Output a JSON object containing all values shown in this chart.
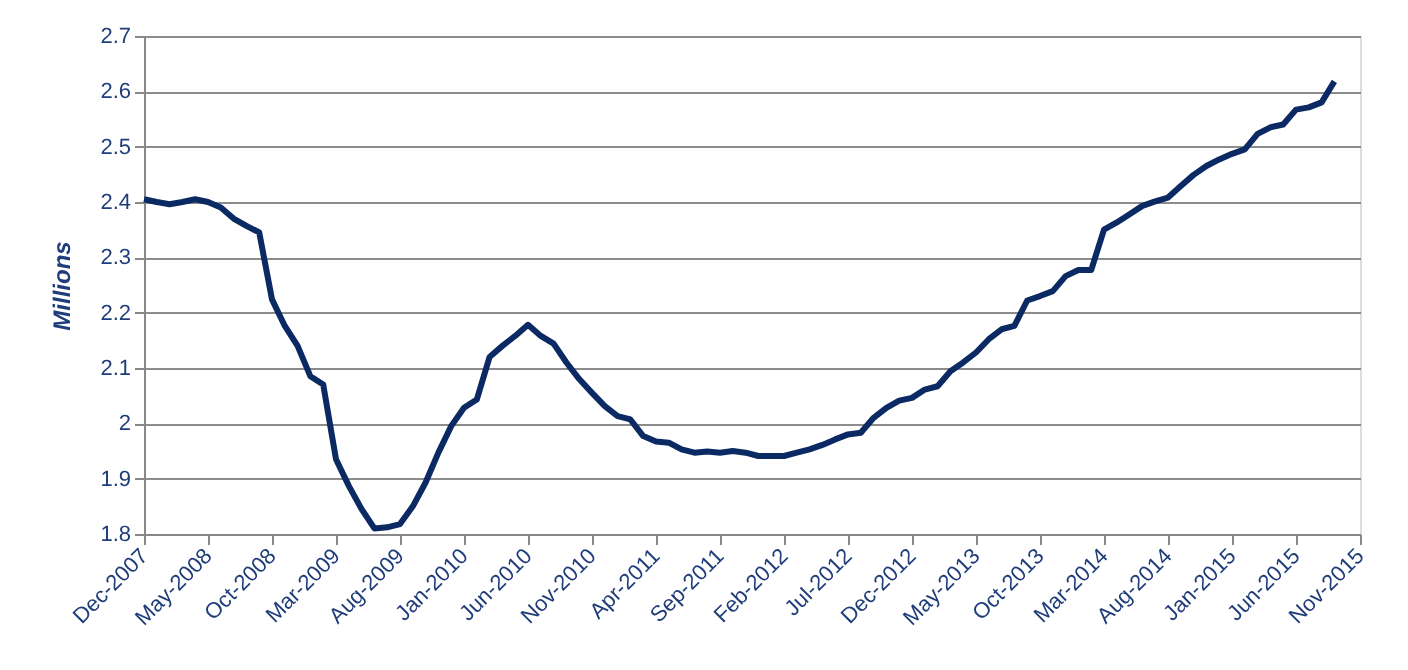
{
  "chart_data": {
    "type": "line",
    "ylabel": "Millions",
    "categories": [
      "Dec-2007",
      null,
      null,
      null,
      null,
      "May-2008",
      null,
      null,
      null,
      null,
      "Oct-2008",
      null,
      null,
      null,
      null,
      "Mar-2009",
      null,
      null,
      null,
      null,
      "Aug-2009",
      null,
      null,
      null,
      null,
      "Jan-2010",
      null,
      null,
      null,
      null,
      "Jun-2010",
      null,
      null,
      null,
      null,
      "Nov-2010",
      null,
      null,
      null,
      null,
      "Apr-2011",
      null,
      null,
      null,
      null,
      "Sep-2011",
      null,
      null,
      null,
      null,
      "Feb-2012",
      null,
      null,
      null,
      null,
      "Jul-2012",
      null,
      null,
      null,
      null,
      "Dec-2012",
      null,
      null,
      null,
      null,
      "May-2013",
      null,
      null,
      null,
      null,
      "Oct-2013",
      null,
      null,
      null,
      null,
      "Mar-2014",
      null,
      null,
      null,
      null,
      "Aug-2014",
      null,
      null,
      null,
      null,
      "Jan-2015",
      null,
      null,
      null,
      null,
      "Jun-2015",
      null,
      null,
      null,
      null,
      "Nov-2015"
    ],
    "series": [
      {
        "color": "#0b2a63",
        "values": [
          2.405,
          2.4,
          2.396,
          2.4,
          2.405,
          2.4,
          2.39,
          2.37,
          2.357,
          2.345,
          2.224,
          2.176,
          2.14,
          2.085,
          2.07,
          1.935,
          1.887,
          1.845,
          1.81,
          1.812,
          1.818,
          1.85,
          1.893,
          1.947,
          1.995,
          2.028,
          2.043,
          2.12,
          2.14,
          2.158,
          2.178,
          2.158,
          2.144,
          2.11,
          2.08,
          2.055,
          2.031,
          2.013,
          2.007,
          1.977,
          1.967,
          1.965,
          1.953,
          1.947,
          1.949,
          1.947,
          1.95,
          1.947,
          1.941,
          1.941,
          1.941,
          1.947,
          1.953,
          1.961,
          1.971,
          1.98,
          1.983,
          2.01,
          2.028,
          2.041,
          2.046,
          2.061,
          2.067,
          2.094,
          2.11,
          2.128,
          2.152,
          2.17,
          2.176,
          2.222,
          2.23,
          2.239,
          2.266,
          2.277,
          2.277,
          2.35,
          2.363,
          2.378,
          2.393,
          2.401,
          2.408,
          2.429,
          2.449,
          2.465,
          2.477,
          2.487,
          2.495,
          2.523,
          2.535,
          2.54,
          2.567,
          2.571,
          2.58,
          2.618,
          null,
          null
        ]
      }
    ],
    "ylim": [
      1.8,
      2.7
    ],
    "yticks": [
      1.8,
      1.9,
      2,
      2.1,
      2.2,
      2.3,
      2.4,
      2.5,
      2.6,
      2.7
    ],
    "grid": "y"
  }
}
